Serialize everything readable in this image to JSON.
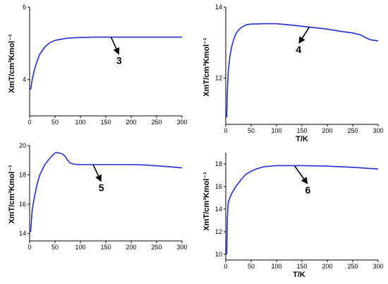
{
  "colors": {
    "series": "#1f2fd6",
    "axis": "#000000",
    "arrow": "#000000"
  },
  "chart_data": [
    {
      "id": "p3",
      "type": "line",
      "xlabel": "",
      "ylabel": "XmT/cm³Kmol⁻¹",
      "xlim": [
        0,
        300
      ],
      "ylim": [
        3,
        6
      ],
      "x_ticks": [
        0,
        50,
        100,
        150,
        200,
        250,
        300
      ],
      "y_ticks": [
        4,
        6
      ],
      "annotation": {
        "label": "3",
        "arrow_from": [
          160,
          5.18
        ],
        "arrow_to": [
          175,
          4.72
        ]
      },
      "series": [
        {
          "x": [
            2,
            5,
            10,
            15,
            20,
            30,
            40,
            50,
            60,
            75,
            100,
            125,
            150,
            200,
            250,
            300
          ],
          "y": [
            3.72,
            4.0,
            4.3,
            4.52,
            4.7,
            4.9,
            5.02,
            5.08,
            5.11,
            5.14,
            5.16,
            5.17,
            5.17,
            5.17,
            5.17,
            5.17
          ]
        }
      ]
    },
    {
      "id": "p4",
      "type": "line",
      "xlabel": "T/K",
      "ylabel": "XmT/cm³Kmol⁻¹",
      "xlim": [
        0,
        300
      ],
      "ylim": [
        10.7,
        14
      ],
      "x_ticks": [
        0,
        50,
        100,
        150,
        200,
        250,
        300
      ],
      "y_ticks": [
        12,
        14
      ],
      "annotation": {
        "label": "4",
        "arrow_from": [
          165,
          13.45
        ],
        "arrow_to": [
          145,
          13.0
        ]
      },
      "series": [
        {
          "x": [
            2,
            3,
            5,
            8,
            12,
            16,
            20,
            25,
            30,
            40,
            50,
            75,
            100,
            125,
            150,
            175,
            200,
            225,
            250,
            265,
            275,
            285,
            300
          ],
          "y": [
            10.9,
            11.6,
            12.2,
            12.6,
            12.9,
            13.1,
            13.25,
            13.35,
            13.42,
            13.5,
            13.52,
            13.53,
            13.53,
            13.5,
            13.46,
            13.42,
            13.38,
            13.32,
            13.27,
            13.22,
            13.14,
            13.08,
            13.05
          ]
        }
      ]
    },
    {
      "id": "p5",
      "type": "line",
      "xlabel": "",
      "ylabel": "XmT/cm³Kmol⁻¹",
      "xlim": [
        0,
        300
      ],
      "ylim": [
        13.5,
        20
      ],
      "x_ticks": [
        0,
        50,
        100,
        150,
        200,
        250,
        300
      ],
      "y_ticks": [
        14,
        16,
        18,
        20
      ],
      "annotation": {
        "label": "5",
        "arrow_from": [
          125,
          18.7
        ],
        "arrow_to": [
          140,
          17.6
        ]
      },
      "series": [
        {
          "x": [
            2,
            5,
            10,
            15,
            20,
            30,
            40,
            50,
            55,
            65,
            70,
            75,
            80,
            85,
            90,
            100,
            150,
            200,
            225,
            250,
            275,
            300
          ],
          "y": [
            14.1,
            15.6,
            16.6,
            17.4,
            18.0,
            18.7,
            19.15,
            19.5,
            19.52,
            19.42,
            19.25,
            19.0,
            18.8,
            18.75,
            18.72,
            18.7,
            18.7,
            18.7,
            18.68,
            18.62,
            18.55,
            18.48
          ]
        }
      ]
    },
    {
      "id": "p6",
      "type": "line",
      "xlabel": "T/K",
      "ylabel": "XmT/cm³Kmol⁻¹",
      "xlim": [
        0,
        300
      ],
      "ylim": [
        9.5,
        19
      ],
      "x_ticks": [
        0,
        50,
        100,
        150,
        200,
        250,
        300
      ],
      "y_ticks": [
        10,
        12,
        14,
        16,
        18
      ],
      "annotation": {
        "label": "6",
        "arrow_from": [
          135,
          17.85
        ],
        "arrow_to": [
          160,
          16.3
        ]
      },
      "series": [
        {
          "x": [
            2,
            3,
            5,
            8,
            12,
            20,
            30,
            40,
            50,
            60,
            75,
            100,
            150,
            200,
            250,
            275,
            300
          ],
          "y": [
            10.0,
            13.2,
            14.6,
            15.0,
            15.4,
            16.0,
            16.6,
            17.1,
            17.35,
            17.55,
            17.75,
            17.85,
            17.85,
            17.8,
            17.7,
            17.62,
            17.55
          ]
        }
      ]
    }
  ]
}
